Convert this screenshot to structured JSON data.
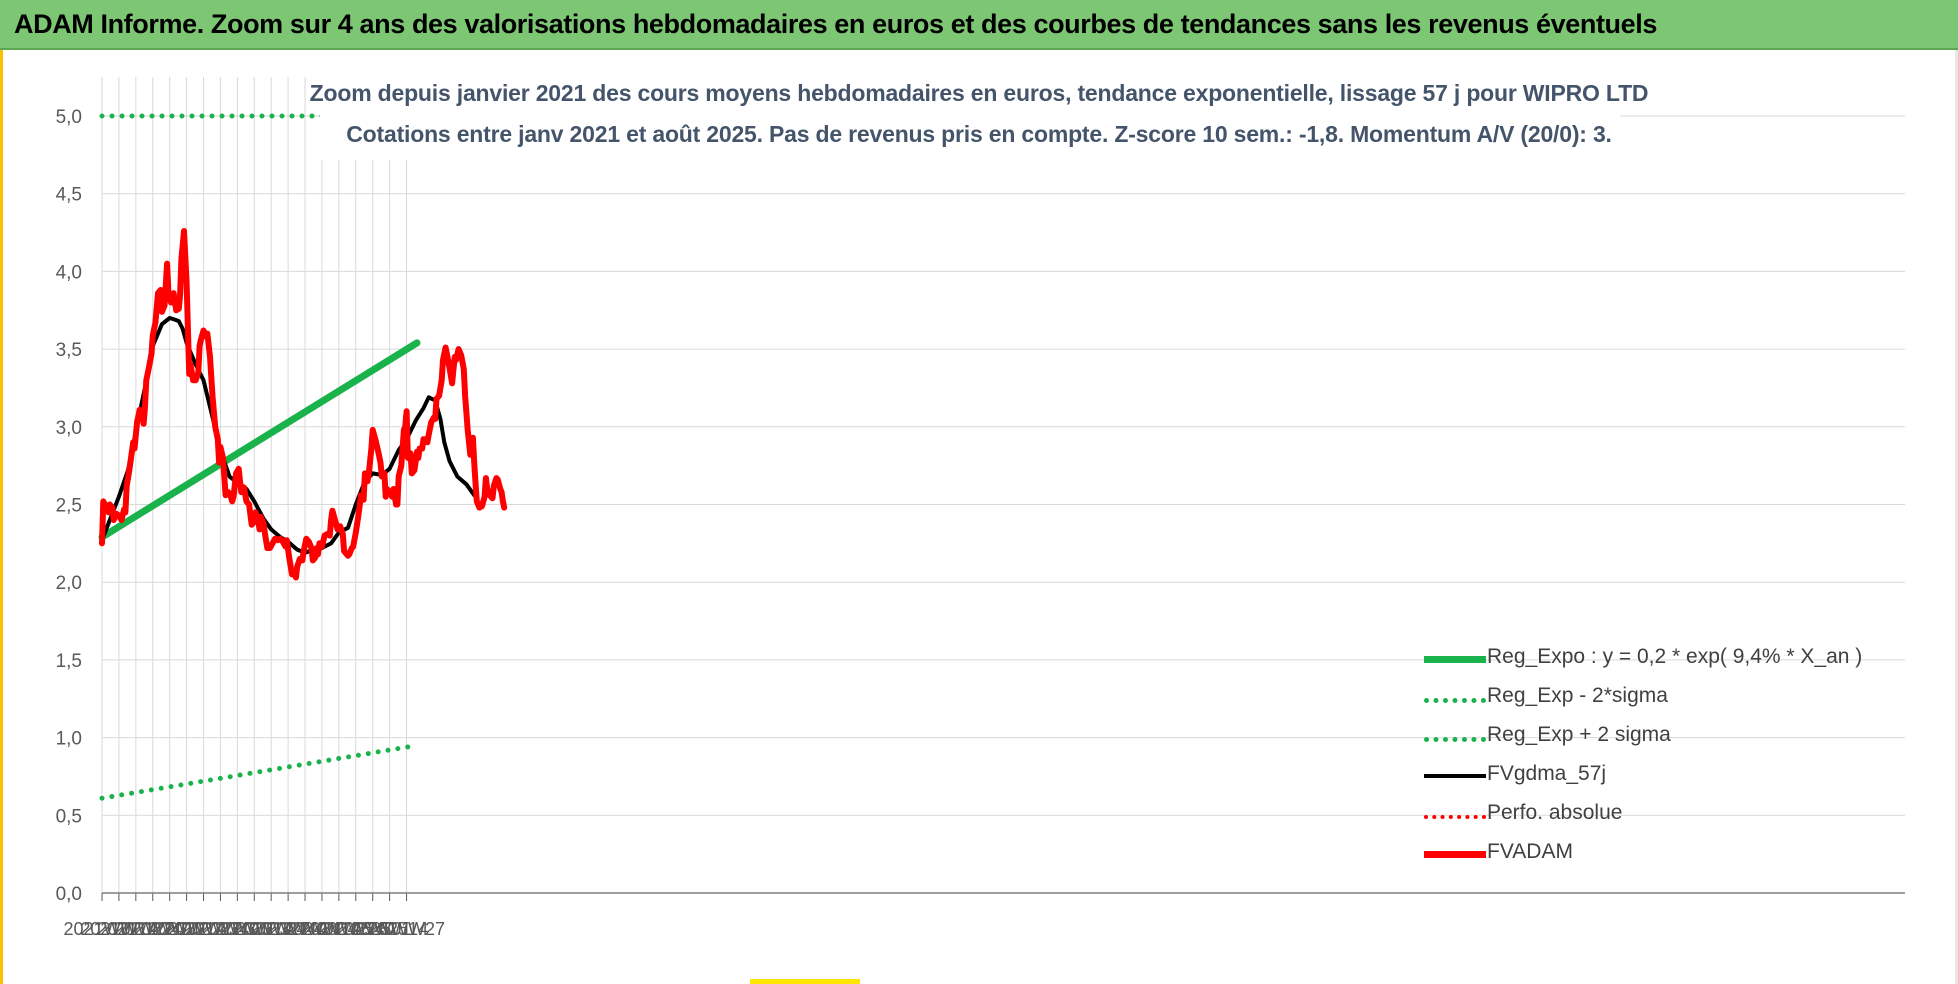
{
  "title": "ADAM Informe. Zoom sur 4 ans des valorisations hebdomadaires en euros et des courbes de tendances sans les revenus éventuels",
  "subtitle_line1": "Zoom depuis janvier 2021 des cours moyens hebdomadaires en euros, tendance exponentielle, lissage 57 j pour WIPRO LTD",
  "subtitle_line2": "Cotations entre janv 2021 et août 2025.  Pas de revenus pris en compte. Z-score 10 sem.: -1,8. Momentum A/V (20/0): 3.",
  "colors": {
    "banner": "#7dc673",
    "trend_green": "#19b24b",
    "red": "#ff0000",
    "black": "#000000",
    "subtitle": "#44546a"
  },
  "chart_data": {
    "type": "line",
    "ylim": [
      0,
      5
    ],
    "y_ticks": [
      "0,0",
      "0,5",
      "1,0",
      "1,5",
      "2,0",
      "2,5",
      "3,0",
      "3,5",
      "4,0",
      "4,5",
      "5,0"
    ],
    "x_ticks": [
      "2021W01",
      "2021W14",
      "2021W27",
      "2021W40",
      "2022W01",
      "2022W14",
      "2022W27",
      "2022W40",
      "2023W01",
      "2023W14",
      "2023W27",
      "2023W40",
      "2024W01",
      "2024W14",
      "2024W27",
      "2024W40",
      "2025W01",
      "2025W14",
      "2025W27"
    ],
    "grid": true,
    "legend_position": "bottom-right",
    "series": [
      {
        "name": "Reg_Expo : y = 0,2 * exp( 9,4% *  X_an )",
        "style": "solid",
        "color": "#19b24b",
        "points": [
          [
            0,
            2.29
          ],
          [
            242,
            3.54
          ]
        ]
      },
      {
        "name": "Reg_Exp - 2*sigma",
        "style": "dotted",
        "color": "#19b24b",
        "points": [
          [
            0,
            0.61
          ],
          [
            242,
            0.95
          ]
        ]
      },
      {
        "name": "Reg_Exp + 2 sigma",
        "style": "dotted",
        "color": "#19b24b",
        "points": [
          [
            0,
            5.0
          ],
          [
            242,
            5.0
          ]
        ]
      },
      {
        "name": "FVgdma_57j",
        "style": "solid",
        "color": "#000000",
        "points": [
          [
            0,
            2.27
          ],
          [
            6,
            2.4
          ],
          [
            13,
            2.55
          ],
          [
            20,
            2.72
          ],
          [
            26,
            2.97
          ],
          [
            33,
            3.25
          ],
          [
            39,
            3.52
          ],
          [
            46,
            3.66
          ],
          [
            52,
            3.7
          ],
          [
            56,
            3.69
          ],
          [
            59,
            3.68
          ],
          [
            62,
            3.63
          ],
          [
            65,
            3.54
          ],
          [
            72,
            3.4
          ],
          [
            78,
            3.3
          ],
          [
            85,
            3.06
          ],
          [
            91,
            2.85
          ],
          [
            98,
            2.68
          ],
          [
            104,
            2.64
          ],
          [
            111,
            2.6
          ],
          [
            117,
            2.52
          ],
          [
            124,
            2.41
          ],
          [
            130,
            2.34
          ],
          [
            137,
            2.29
          ],
          [
            143,
            2.26
          ],
          [
            150,
            2.21
          ],
          [
            156,
            2.19
          ],
          [
            163,
            2.21
          ],
          [
            169,
            2.22
          ],
          [
            176,
            2.25
          ],
          [
            182,
            2.32
          ],
          [
            189,
            2.35
          ],
          [
            195,
            2.5
          ],
          [
            202,
            2.65
          ],
          [
            208,
            2.7
          ],
          [
            215,
            2.69
          ],
          [
            221,
            2.73
          ],
          [
            228,
            2.85
          ],
          [
            234,
            2.92
          ],
          [
            241,
            3.04
          ],
          [
            247,
            3.12
          ],
          [
            251,
            3.19
          ],
          [
            256,
            3.17
          ],
          [
            260,
            3.05
          ],
          [
            263,
            2.9
          ],
          [
            267,
            2.78
          ],
          [
            273,
            2.68
          ],
          [
            280,
            2.63
          ],
          [
            286,
            2.56
          ]
        ]
      },
      {
        "name": "Perfo. absolue",
        "style": "dotted",
        "color": "#ff0000",
        "points": []
      },
      {
        "name": "FVADAM",
        "style": "solid",
        "color": "#ff0000",
        "points": [
          [
            0,
            2.25
          ],
          [
            1,
            2.52
          ],
          [
            3,
            2.49
          ],
          [
            5,
            2.45
          ],
          [
            6,
            2.5
          ],
          [
            8,
            2.48
          ],
          [
            9,
            2.4
          ],
          [
            11,
            2.44
          ],
          [
            13,
            2.43
          ],
          [
            15,
            2.4
          ],
          [
            17,
            2.47
          ],
          [
            18,
            2.45
          ],
          [
            19,
            2.62
          ],
          [
            21,
            2.72
          ],
          [
            23,
            2.84
          ],
          [
            24,
            2.9
          ],
          [
            25,
            2.86
          ],
          [
            27,
            3.03
          ],
          [
            29,
            3.11
          ],
          [
            31,
            3.07
          ],
          [
            32,
            3.02
          ],
          [
            33,
            3.12
          ],
          [
            34,
            3.3
          ],
          [
            36,
            3.38
          ],
          [
            38,
            3.47
          ],
          [
            39,
            3.59
          ],
          [
            41,
            3.67
          ],
          [
            43,
            3.86
          ],
          [
            45,
            3.88
          ],
          [
            46,
            3.74
          ],
          [
            48,
            3.78
          ],
          [
            50,
            4.05
          ],
          [
            51,
            3.87
          ],
          [
            53,
            3.8
          ],
          [
            55,
            3.86
          ],
          [
            57,
            3.75
          ],
          [
            59,
            3.76
          ],
          [
            60,
            3.85
          ],
          [
            61,
            4.08
          ],
          [
            63,
            4.26
          ],
          [
            65,
            3.93
          ],
          [
            67,
            3.34
          ],
          [
            68,
            3.4
          ],
          [
            70,
            3.3
          ],
          [
            72,
            3.3
          ],
          [
            74,
            3.35
          ],
          [
            75,
            3.52
          ],
          [
            76,
            3.56
          ],
          [
            78,
            3.62
          ],
          [
            80,
            3.58
          ],
          [
            81,
            3.6
          ],
          [
            83,
            3.45
          ],
          [
            84,
            3.32
          ],
          [
            85,
            3.19
          ],
          [
            87,
            3.0
          ],
          [
            89,
            2.92
          ],
          [
            90,
            2.77
          ],
          [
            91,
            2.87
          ],
          [
            93,
            2.8
          ],
          [
            95,
            2.56
          ],
          [
            97,
            2.58
          ],
          [
            99,
            2.55
          ],
          [
            100,
            2.52
          ],
          [
            101,
            2.55
          ],
          [
            103,
            2.7
          ],
          [
            105,
            2.73
          ],
          [
            106,
            2.65
          ],
          [
            107,
            2.58
          ],
          [
            109,
            2.61
          ],
          [
            111,
            2.52
          ],
          [
            113,
            2.5
          ],
          [
            115,
            2.37
          ],
          [
            117,
            2.39
          ],
          [
            118,
            2.45
          ],
          [
            120,
            2.4
          ],
          [
            121,
            2.34
          ],
          [
            122,
            2.42
          ],
          [
            124,
            2.38
          ],
          [
            126,
            2.27
          ],
          [
            127,
            2.22
          ],
          [
            129,
            2.22
          ],
          [
            131,
            2.25
          ],
          [
            133,
            2.28
          ],
          [
            135,
            2.27
          ],
          [
            137,
            2.28
          ],
          [
            139,
            2.26
          ],
          [
            141,
            2.23
          ],
          [
            142,
            2.27
          ],
          [
            144,
            2.15
          ],
          [
            146,
            2.05
          ],
          [
            148,
            2.07
          ],
          [
            149,
            2.03
          ],
          [
            150,
            2.1
          ],
          [
            152,
            2.15
          ],
          [
            154,
            2.14
          ],
          [
            155,
            2.2
          ],
          [
            157,
            2.28
          ],
          [
            159,
            2.26
          ],
          [
            161,
            2.22
          ],
          [
            162,
            2.14
          ],
          [
            164,
            2.16
          ],
          [
            165,
            2.22
          ],
          [
            166,
            2.18
          ],
          [
            167,
            2.25
          ],
          [
            169,
            2.23
          ],
          [
            171,
            2.3
          ],
          [
            173,
            2.31
          ],
          [
            175,
            2.3
          ],
          [
            176,
            2.4
          ],
          [
            177,
            2.46
          ],
          [
            179,
            2.4
          ],
          [
            181,
            2.34
          ],
          [
            183,
            2.36
          ],
          [
            185,
            2.31
          ],
          [
            186,
            2.2
          ],
          [
            188,
            2.18
          ],
          [
            189,
            2.17
          ],
          [
            190,
            2.18
          ],
          [
            192,
            2.22
          ],
          [
            193,
            2.23
          ],
          [
            195,
            2.32
          ],
          [
            197,
            2.43
          ],
          [
            199,
            2.56
          ],
          [
            201,
            2.53
          ],
          [
            202,
            2.7
          ],
          [
            204,
            2.65
          ],
          [
            205,
            2.7
          ],
          [
            207,
            2.86
          ],
          [
            208,
            2.98
          ],
          [
            210,
            2.92
          ],
          [
            212,
            2.85
          ],
          [
            214,
            2.77
          ],
          [
            215,
            2.68
          ],
          [
            217,
            2.7
          ],
          [
            218,
            2.55
          ],
          [
            219,
            2.6
          ],
          [
            221,
            2.58
          ],
          [
            223,
            2.55
          ],
          [
            224,
            2.6
          ],
          [
            226,
            2.5
          ],
          [
            227,
            2.5
          ],
          [
            228,
            2.68
          ],
          [
            230,
            2.75
          ],
          [
            232,
            2.98
          ],
          [
            233,
            3.0
          ],
          [
            234,
            3.1
          ],
          [
            235,
            2.8
          ],
          [
            237,
            2.83
          ],
          [
            238,
            2.7
          ],
          [
            240,
            2.72
          ],
          [
            242,
            2.84
          ],
          [
            243,
            2.8
          ],
          [
            244,
            2.86
          ],
          [
            246,
            2.86
          ],
          [
            247,
            2.92
          ],
          [
            248,
            2.92
          ],
          [
            250,
            2.9
          ],
          [
            251,
            2.95
          ],
          [
            253,
            3.03
          ],
          [
            255,
            3.06
          ],
          [
            256,
            3.05
          ],
          [
            257,
            3.18
          ],
          [
            259,
            3.2
          ],
          [
            261,
            3.3
          ],
          [
            262,
            3.43
          ],
          [
            264,
            3.51
          ],
          [
            265,
            3.47
          ],
          [
            267,
            3.38
          ],
          [
            269,
            3.28
          ],
          [
            271,
            3.45
          ],
          [
            272,
            3.43
          ],
          [
            274,
            3.5
          ],
          [
            276,
            3.46
          ],
          [
            278,
            3.37
          ],
          [
            279,
            3.2
          ],
          [
            281,
            2.98
          ],
          [
            283,
            2.82
          ],
          [
            285,
            2.93
          ],
          [
            286,
            2.77
          ],
          [
            287,
            2.64
          ],
          [
            288,
            2.52
          ],
          [
            290,
            2.48
          ],
          [
            292,
            2.49
          ],
          [
            294,
            2.55
          ],
          [
            295,
            2.67
          ],
          [
            296,
            2.6
          ],
          [
            298,
            2.56
          ],
          [
            300,
            2.54
          ],
          [
            301,
            2.62
          ],
          [
            303,
            2.67
          ],
          [
            304,
            2.66
          ],
          [
            306,
            2.6
          ],
          [
            307,
            2.58
          ],
          [
            308,
            2.52
          ],
          [
            309,
            2.48
          ]
        ]
      }
    ]
  }
}
